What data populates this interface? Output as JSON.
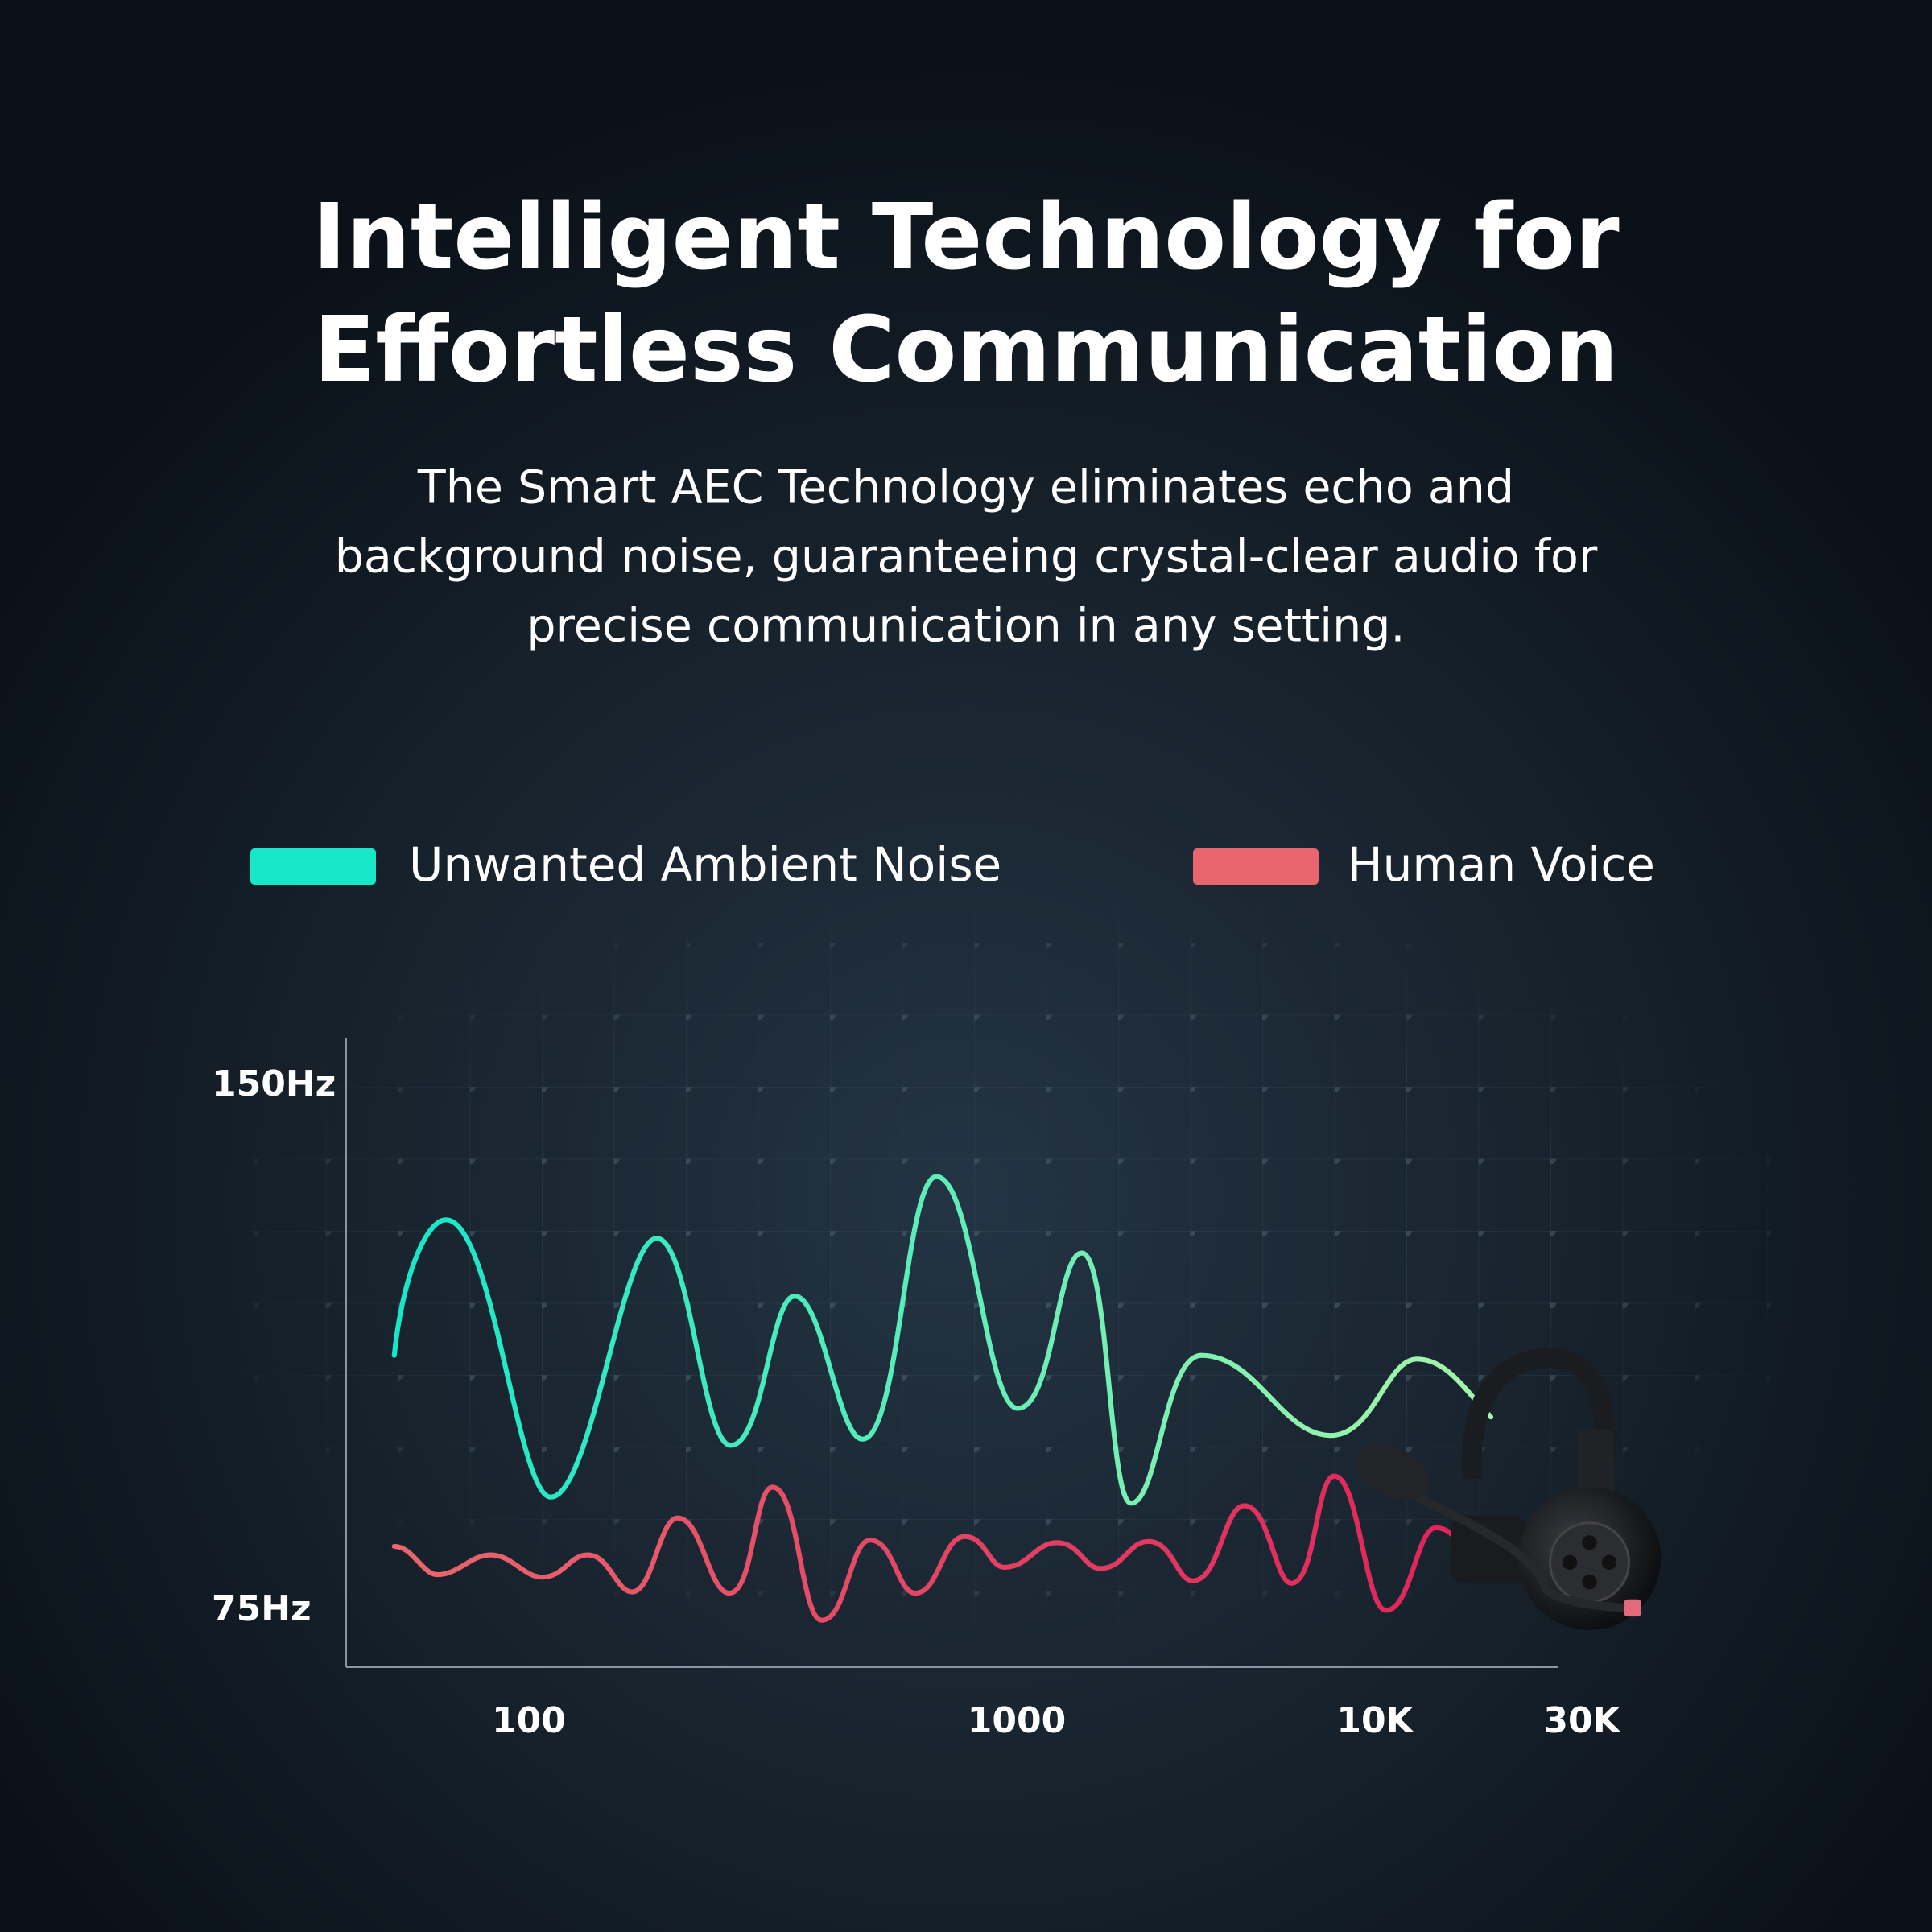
{
  "header": {
    "title": [
      "Intelligent Technology for",
      "Effortless Communication"
    ],
    "description": [
      "The Smart AEC Technology eliminates echo and",
      "background noise, guaranteeing crystal-clear audio for",
      "precise communication in any setting."
    ]
  },
  "legend": [
    {
      "label": "Unwanted Ambient Noise",
      "color": "#17e6c9"
    },
    {
      "label": "Human Voice",
      "color": "#e9666f"
    }
  ],
  "chart": {
    "y_labels": [
      "150Hz",
      "75Hz"
    ],
    "x_labels": [
      "100",
      "1000",
      "10K",
      "30K"
    ]
  }
}
